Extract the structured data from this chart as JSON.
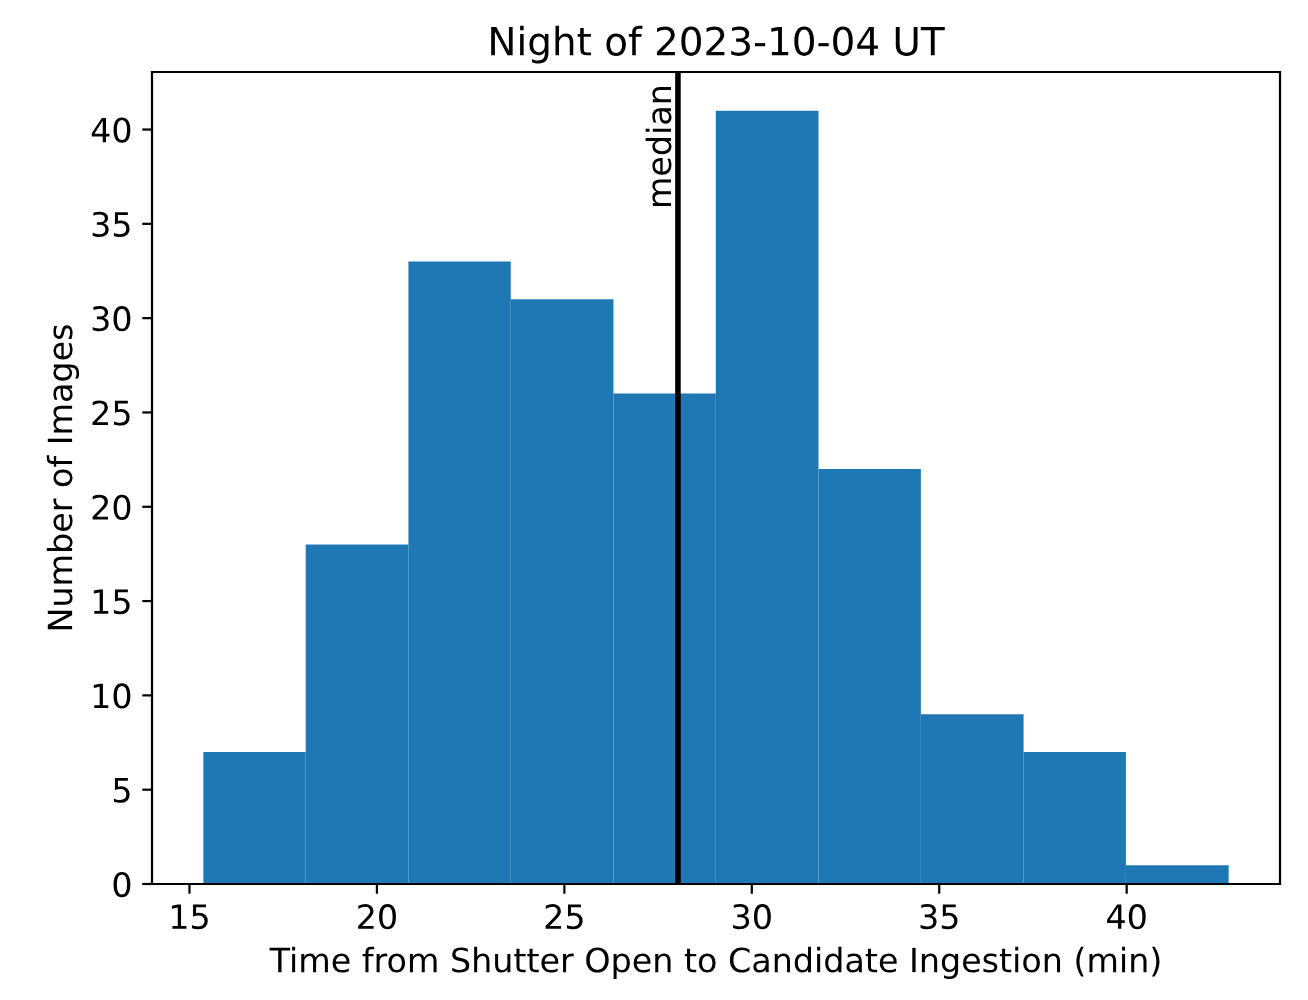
{
  "chart_data": {
    "type": "histogram",
    "title": "Night of 2023-10-04 UT",
    "xlabel": "Time from Shutter Open to Candidate Ingestion (min)",
    "ylabel": "Number of Images",
    "bins": [
      15.37,
      18.1,
      20.84,
      23.57,
      26.31,
      29.04,
      31.78,
      34.51,
      37.25,
      39.98,
      42.72
    ],
    "values": [
      7,
      18,
      33,
      31,
      26,
      41,
      22,
      9,
      7,
      1
    ],
    "color": "#1f77b4",
    "xlim": [
      14.0,
      44.09
    ],
    "ylim": [
      0,
      43.05
    ],
    "xticks": [
      15,
      20,
      25,
      30,
      35,
      40
    ],
    "yticks": [
      0,
      5,
      10,
      15,
      20,
      25,
      30,
      35,
      40
    ],
    "ref_lines": [
      {
        "axis": "x",
        "value": 28.03,
        "label": "median",
        "color": "#000000",
        "line_style": "solid"
      }
    ],
    "grid": false,
    "legend": false
  }
}
